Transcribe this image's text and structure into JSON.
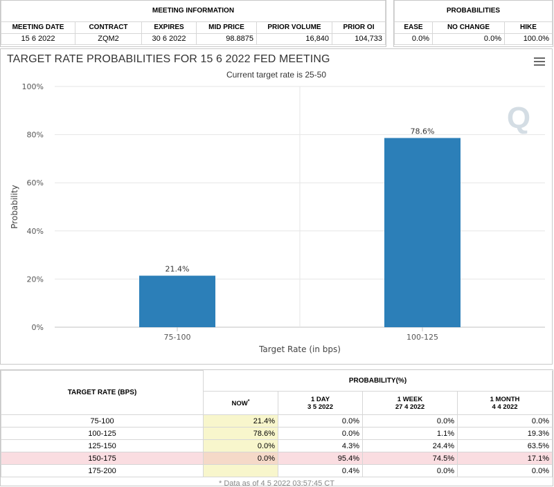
{
  "meeting_info": {
    "title": "MEETING INFORMATION",
    "headers": [
      "MEETING DATE",
      "CONTRACT",
      "EXPIRES",
      "MID PRICE",
      "PRIOR VOLUME",
      "PRIOR OI"
    ],
    "row": [
      "15 6 2022",
      "ZQM2",
      "30 6 2022",
      "98.8875",
      "16,840",
      "104,733"
    ]
  },
  "probabilities": {
    "title": "PROBABILITIES",
    "headers": [
      "EASE",
      "NO CHANGE",
      "HIKE"
    ],
    "row": [
      "0.0%",
      "0.0%",
      "100.0%"
    ]
  },
  "chart": {
    "menu_icon": "hamburger-menu-icon",
    "watermark_icon": "q-logo-icon"
  },
  "chart_data": {
    "type": "bar",
    "title": "TARGET RATE PROBABILITIES FOR 15 6 2022 FED MEETING",
    "subtitle": "Current target rate is 25-50",
    "xlabel": "Target Rate (in bps)",
    "ylabel": "Probability",
    "categories": [
      "75-100",
      "100-125"
    ],
    "values": [
      21.4,
      78.6
    ],
    "data_labels": [
      "21.4%",
      "78.6%"
    ],
    "ylim": [
      0,
      100
    ],
    "yticks": [
      0,
      20,
      40,
      60,
      80,
      100
    ],
    "ytick_labels": [
      "0%",
      "20%",
      "40%",
      "60%",
      "80%",
      "100%"
    ],
    "bar_color": "#2c7fb8",
    "grid": true,
    "legend": "none"
  },
  "prob_table": {
    "target_header": "TARGET RATE (BPS)",
    "group_header": "PROBABILITY(%)",
    "columns": [
      {
        "label": "NOW",
        "mark": "*",
        "date": ""
      },
      {
        "label": "1 DAY",
        "date": "3 5 2022"
      },
      {
        "label": "1 WEEK",
        "date": "27 4 2022"
      },
      {
        "label": "1 MONTH",
        "date": "4 4 2022"
      }
    ],
    "rows": [
      {
        "rate": "75-100",
        "now": "21.4%",
        "day": "0.0%",
        "week": "0.0%",
        "month": "0.0%"
      },
      {
        "rate": "100-125",
        "now": "78.6%",
        "day": "0.0%",
        "week": "1.1%",
        "month": "19.3%"
      },
      {
        "rate": "125-150",
        "now": "0.0%",
        "day": "4.3%",
        "week": "24.4%",
        "month": "63.5%"
      },
      {
        "rate": "150-175",
        "now": "0.0%",
        "day": "95.4%",
        "week": "74.5%",
        "month": "17.1%"
      },
      {
        "rate": "175-200",
        "now": "",
        "day": "0.4%",
        "week": "0.0%",
        "month": "0.0%"
      }
    ],
    "highlight_row": "150-175",
    "footnote": "* Data as of 4 5 2022 03:57:45 CT"
  }
}
